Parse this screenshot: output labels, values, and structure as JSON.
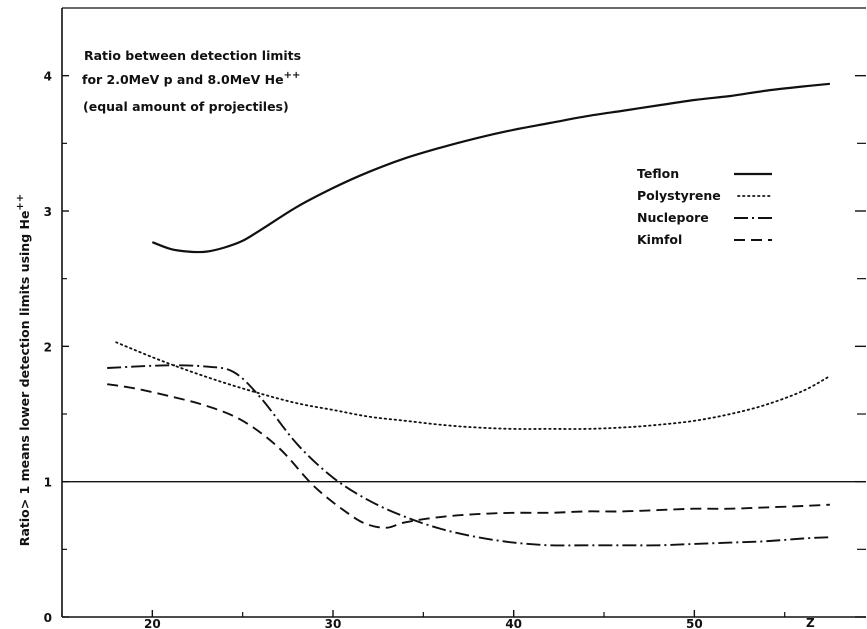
{
  "chart_data": {
    "type": "line",
    "title": "",
    "xlabel": "Z",
    "ylabel": "Ratio> 1 means lower detection limits using He",
    "ylabel_superscript": "++",
    "xlim": [
      15,
      59.5
    ],
    "ylim": [
      0,
      4.5
    ],
    "x_ticks": [
      20,
      30,
      40,
      50
    ],
    "y_ticks": [
      0,
      1,
      2,
      3,
      4
    ],
    "minor_y_ticks": [
      0.5,
      1.5,
      2.5,
      3.5
    ],
    "reference_line": 1,
    "grid": false,
    "legend_position": "right",
    "annotation": {
      "line1": "Ratio between detection limits",
      "line2": "for 2.0MeV p and 8.0MeV He",
      "line2_superscript": "++",
      "line3": "(equal amount of projectiles)"
    },
    "series": [
      {
        "name": "Teflon",
        "style": "solid",
        "x": [
          20,
          21,
          22,
          23,
          24,
          25,
          26,
          28,
          30,
          32,
          34,
          36,
          38,
          40,
          42,
          44,
          46,
          48,
          50,
          52,
          54,
          56,
          57.5
        ],
        "y": [
          2.77,
          2.72,
          2.7,
          2.7,
          2.73,
          2.78,
          2.86,
          3.03,
          3.17,
          3.29,
          3.39,
          3.47,
          3.54,
          3.6,
          3.65,
          3.7,
          3.74,
          3.78,
          3.82,
          3.85,
          3.89,
          3.92,
          3.94
        ]
      },
      {
        "name": "Polystyrene",
        "style": "dotted",
        "x": [
          18,
          20,
          22,
          24,
          26,
          28,
          30,
          32,
          34,
          36,
          38,
          40,
          42,
          44,
          46,
          48,
          50,
          52,
          54,
          56,
          57.5
        ],
        "y": [
          2.03,
          1.92,
          1.82,
          1.73,
          1.65,
          1.58,
          1.53,
          1.48,
          1.45,
          1.42,
          1.4,
          1.39,
          1.39,
          1.39,
          1.4,
          1.42,
          1.45,
          1.5,
          1.57,
          1.67,
          1.78
        ]
      },
      {
        "name": "Nuclepore",
        "style": "dashdot",
        "x": [
          17.5,
          19,
          21,
          23,
          24.5,
          26,
          28,
          30,
          32,
          34,
          36,
          38,
          40,
          42,
          44,
          46,
          48,
          50,
          52,
          54,
          56,
          57.5
        ],
        "y": [
          1.84,
          1.85,
          1.86,
          1.85,
          1.81,
          1.62,
          1.28,
          1.03,
          0.86,
          0.74,
          0.65,
          0.59,
          0.55,
          0.53,
          0.53,
          0.53,
          0.53,
          0.54,
          0.55,
          0.56,
          0.58,
          0.59
        ]
      },
      {
        "name": "Kimfol",
        "style": "dashed",
        "x": [
          17.5,
          19,
          21,
          23,
          25,
          27,
          29,
          31,
          32,
          33,
          34,
          36,
          38,
          40,
          42,
          44,
          46,
          48,
          50,
          52,
          54,
          56,
          57.5
        ],
        "y": [
          1.72,
          1.69,
          1.63,
          1.56,
          1.45,
          1.25,
          0.96,
          0.75,
          0.68,
          0.66,
          0.7,
          0.74,
          0.76,
          0.77,
          0.77,
          0.78,
          0.78,
          0.79,
          0.8,
          0.8,
          0.81,
          0.82,
          0.83
        ]
      }
    ]
  }
}
